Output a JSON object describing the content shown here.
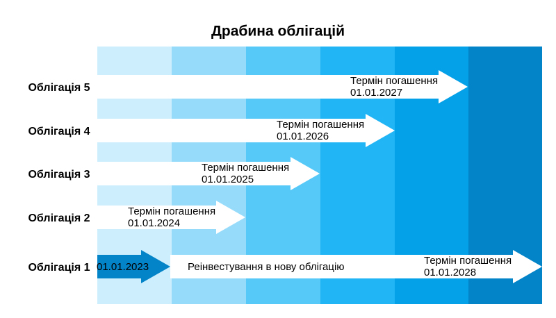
{
  "title": "Драбина облігацій",
  "bonds": [
    {
      "label": "Облігація 5",
      "maturity_label": "Термін погашення",
      "maturity_date": "01.01.2027"
    },
    {
      "label": "Облігація 4",
      "maturity_label": "Термін погашення",
      "maturity_date": "01.01.2026"
    },
    {
      "label": "Облігація 3",
      "maturity_label": "Термін погашення",
      "maturity_date": "01.01.2025"
    },
    {
      "label": "Облігація 2",
      "maturity_label": "Термін погашення",
      "maturity_date": "01.01.2024"
    },
    {
      "label": "Облігація 1",
      "start_date": "01.01.2023",
      "note": "Реінвестування в нову облігацію",
      "maturity_label": "Термін погашення",
      "maturity_date": "01.01.2028"
    }
  ]
}
